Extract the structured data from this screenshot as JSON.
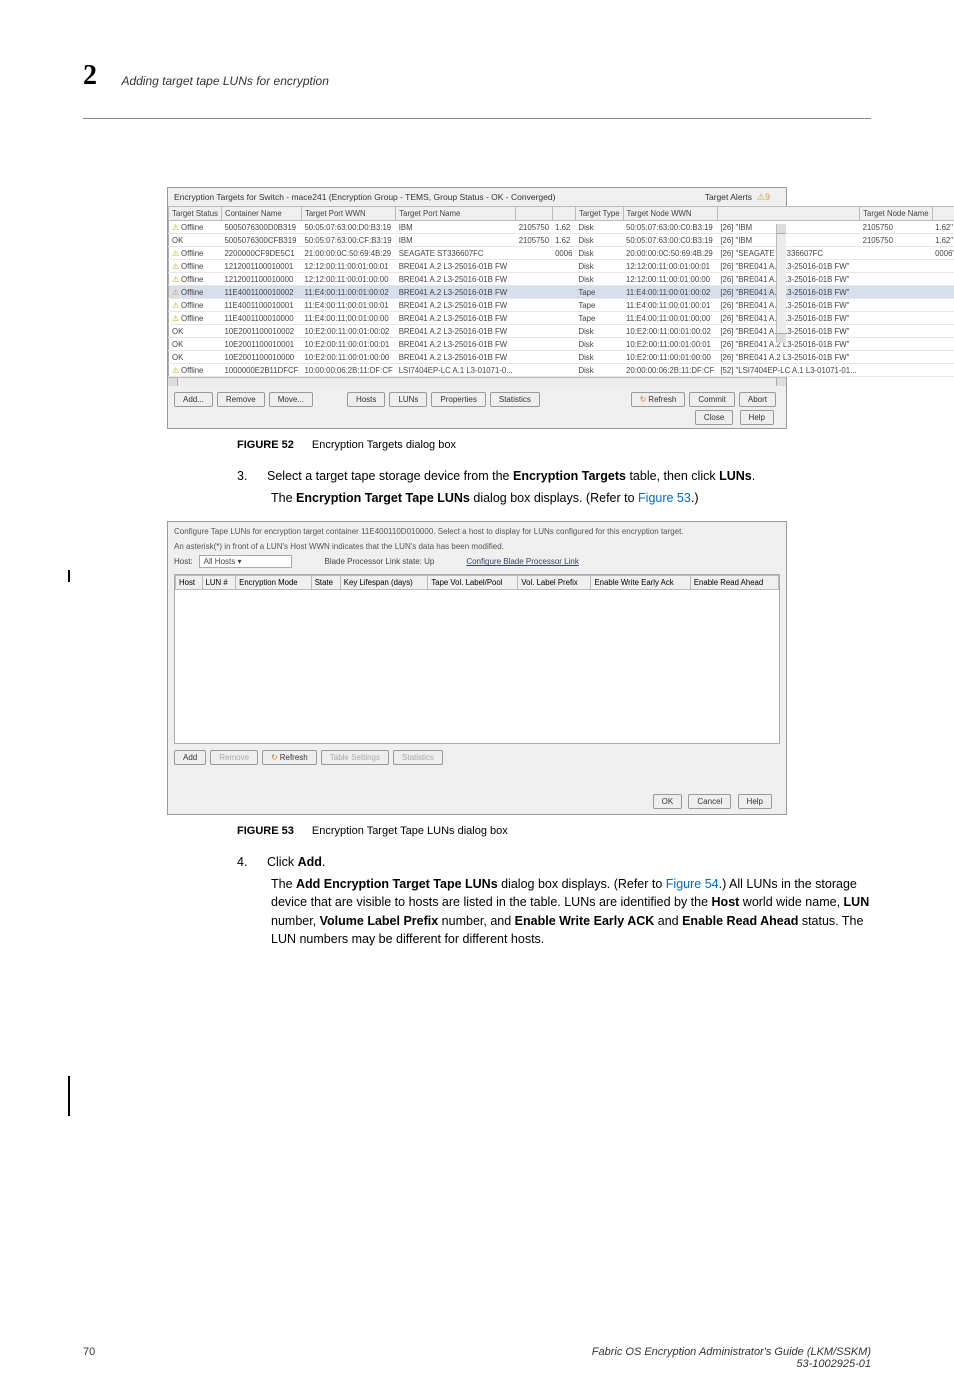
{
  "header": {
    "chapter_number": "2",
    "chapter_title": "Adding target tape LUNs for encryption"
  },
  "dialog1": {
    "title": "Encryption Targets for Switch - mace241 (Encryption Group - TEMS, Group Status - OK - Converged)",
    "alert_label": "Target Alerts",
    "alert_count": "9",
    "columns": [
      "Target Status",
      "Container Name",
      "Target Port WWN",
      "Target Port Name",
      "",
      "",
      "Target Type",
      "Target Node WWN",
      "",
      "Target Node Name",
      ""
    ],
    "rows": [
      {
        "w": true,
        "s": "Offline",
        "cn": "5005076300D0B319",
        "pw": "50:05:07:63:00:D0:B3:19",
        "pn": "IBM",
        "p2": "2105750",
        "p3": "1.62",
        "tt": "Disk",
        "nw": "50:05:07:63:00:C0:B3:19",
        "t1": "[26] \"IBM",
        "nn": "2105750",
        "t2": "1.62\""
      },
      {
        "w": false,
        "s": "OK",
        "cn": "5005076300CFB319",
        "pw": "50:05:07:63:00:CF:B3:19",
        "pn": "IBM",
        "p2": "2105750",
        "p3": "1.62",
        "tt": "Disk",
        "nw": "50:05:07:63:00:C0:B3:19",
        "t1": "[26] \"IBM",
        "nn": "2105750",
        "t2": "1.62\""
      },
      {
        "w": true,
        "s": "Offline",
        "cn": "2200000CF9DE5C1",
        "pw": "21:00:00:0C:50:69:4B:29",
        "pn": "SEAGATE ST336607FC",
        "p2": "",
        "p3": "0006",
        "tt": "Disk",
        "nw": "20:00:00:0C:50:69:4B:29",
        "t1": "[26] \"SEAGATE ST336607FC",
        "nn": "",
        "t2": "0006\""
      },
      {
        "w": true,
        "s": "Offline",
        "cn": "1212001100010001",
        "pw": "12:12:00:11:00:01:00:01",
        "pn": "BRE041 A.2 L3-25016-01B FW",
        "p2": "",
        "p3": "",
        "tt": "Disk",
        "nw": "12:12:00:11:00:01:00:01",
        "t1": "[26] \"BRE041 A.2 L3-25016-01B FW\"",
        "nn": "",
        "t2": ""
      },
      {
        "w": true,
        "s": "Offline",
        "cn": "1212001100010000",
        "pw": "12:12:00:11:00:01:00:00",
        "pn": "BRE041 A.2 L3-25016-01B FW",
        "p2": "",
        "p3": "",
        "tt": "Disk",
        "nw": "12:12:00:11:00:01:00:00",
        "t1": "[26] \"BRE041 A.2 L3-25016-01B FW\"",
        "nn": "",
        "t2": ""
      },
      {
        "w": true,
        "sel": true,
        "s": "Offline",
        "cn": "11E4001100010002",
        "pw": "11:E4:00:11:00:01:00:02",
        "pn": "BRE041 A.2 L3-25016-01B FW",
        "p2": "",
        "p3": "",
        "tt": "Tape",
        "nw": "11:E4:00:11:00:01:00:02",
        "t1": "[26] \"BRE041 A.2 L3-25016-01B FW\"",
        "nn": "",
        "t2": ""
      },
      {
        "w": true,
        "s": "Offline",
        "cn": "11E4001100010001",
        "pw": "11:E4:00:11:00:01:00:01",
        "pn": "BRE041 A.2 L3-25016-01B FW",
        "p2": "",
        "p3": "",
        "tt": "Tape",
        "nw": "11:E4:00:11:00:01:00:01",
        "t1": "[26] \"BRE041 A.2 L3-25016-01B FW\"",
        "nn": "",
        "t2": ""
      },
      {
        "w": true,
        "s": "Offline",
        "cn": "11E4001100010000",
        "pw": "11:E4:00:11:00:01:00:00",
        "pn": "BRE041 A.2 L3-25016-01B FW",
        "p2": "",
        "p3": "",
        "tt": "Tape",
        "nw": "11:E4:00:11:00:01:00:00",
        "t1": "[26] \"BRE041 A.2 L3-25016-01B FW\"",
        "nn": "",
        "t2": ""
      },
      {
        "w": false,
        "s": "OK",
        "cn": "10E2001100010002",
        "pw": "10:E2:00:11:00:01:00:02",
        "pn": "BRE041 A.2 L3-25016-01B FW",
        "p2": "",
        "p3": "",
        "tt": "Disk",
        "nw": "10:E2:00:11:00:01:00:02",
        "t1": "[26] \"BRE041 A.2 L3-25016-01B FW\"",
        "nn": "",
        "t2": ""
      },
      {
        "w": false,
        "s": "OK",
        "cn": "10E2001100010001",
        "pw": "10:E2:00:11:00:01:00:01",
        "pn": "BRE041 A.2 L3-25016-01B FW",
        "p2": "",
        "p3": "",
        "tt": "Disk",
        "nw": "10:E2:00:11:00:01:00:01",
        "t1": "[26] \"BRE041 A.2 L3-25016-01B FW\"",
        "nn": "",
        "t2": ""
      },
      {
        "w": false,
        "s": "OK",
        "cn": "10E2001100010000",
        "pw": "10:E2:00:11:00:01:00:00",
        "pn": "BRE041 A.2 L3-25016-01B FW",
        "p2": "",
        "p3": "",
        "tt": "Disk",
        "nw": "10:E2:00:11:00:01:00:00",
        "t1": "[26] \"BRE041 A.2 L3-25016-01B FW\"",
        "nn": "",
        "t2": ""
      },
      {
        "w": true,
        "s": "Offline",
        "cn": "1000000E2B11DFCF",
        "pw": "10:00:00:06:2B:11:DF:CF",
        "pn": "LSI7404EP-LC A.1 L3-01071-0...",
        "p2": "",
        "p3": "",
        "tt": "Disk",
        "nw": "20:00:00:06:2B:11:DF:CF",
        "t1": "[52] \"LSI7404EP-LC A.1 L3-01071-01...",
        "nn": "",
        "t2": ""
      }
    ],
    "buttons": {
      "add": "Add...",
      "remove": "Remove",
      "move": "Move...",
      "hosts": "Hosts",
      "luns": "LUNs",
      "properties": "Properties",
      "statistics": "Statistics",
      "refresh": "Refresh",
      "commit": "Commit",
      "abort": "Abort",
      "close": "Close",
      "help": "Help"
    }
  },
  "figure52": {
    "label": "FIGURE 52",
    "text": "Encryption Targets dialog box"
  },
  "step3": {
    "num": "3.",
    "line1_a": "Select a target tape storage device from the ",
    "line1_b": "Encryption Targets",
    "line1_c": " table, then click ",
    "line1_d": "LUNs",
    "line1_e": ".",
    "line2_a": "The ",
    "line2_b": "Encryption Target Tape LUNs",
    "line2_c": " dialog box displays. (Refer to ",
    "line2_d": "Figure 53",
    "line2_e": ".)"
  },
  "dialog2": {
    "desc1": "Configure Tape LUNs for encryption target container 11E400110D010000. Select a host to display for LUNs configured for this encryption target.",
    "desc2": "An asterisk(*) in front of a LUN's Host WWN indicates that the LUN's data has been modified.",
    "host_label": "Host:",
    "host_value": "All Hosts",
    "blade_label": "Blade Processor Link state: Up",
    "blade_action": "Configure Blade Processor Link",
    "cols": [
      "Host",
      "LUN #",
      "Encryption Mode",
      "State",
      "Key Lifespan (days)",
      "Tape Vol. Label/Pool",
      "Vol. Label Prefix",
      "Enable Write Early Ack",
      "Enable Read Ahead"
    ],
    "buttons": {
      "add": "Add",
      "remove": "Remove",
      "refresh": "Refresh",
      "table_settings": "Table Settings",
      "statistics": "Statistics",
      "ok": "OK",
      "cancel": "Cancel",
      "help": "Help"
    }
  },
  "figure53": {
    "label": "FIGURE 53",
    "text": "Encryption Target Tape LUNs dialog box"
  },
  "step4": {
    "num": "4.",
    "line1_a": "Click ",
    "line1_b": "Add",
    "line1_c": ".",
    "p2_a": "The ",
    "p2_b": "Add Encryption Target Tape LUNs",
    "p2_c": " dialog box displays. (Refer to ",
    "p2_d": "Figure 54",
    "p2_e": ".) All LUNs in the storage device that are visible to hosts are listed in the table. LUNs are identified by the ",
    "p2_f": "Host",
    "p2_g": " world wide name, ",
    "p2_h": "LUN",
    "p2_i": " number, ",
    "p2_j": "Volume Label Prefix",
    "p2_k": " number, and ",
    "p2_l": "Enable Write Early ACK",
    "p2_m": " and ",
    "p2_n": "Enable Read Ahead",
    "p2_o": " status. The LUN numbers may be different for different hosts."
  },
  "footer": {
    "page": "70",
    "doc1": "Fabric OS Encryption Administrator's Guide (LKM/SSKM)",
    "doc2": "53-1002925-01"
  }
}
